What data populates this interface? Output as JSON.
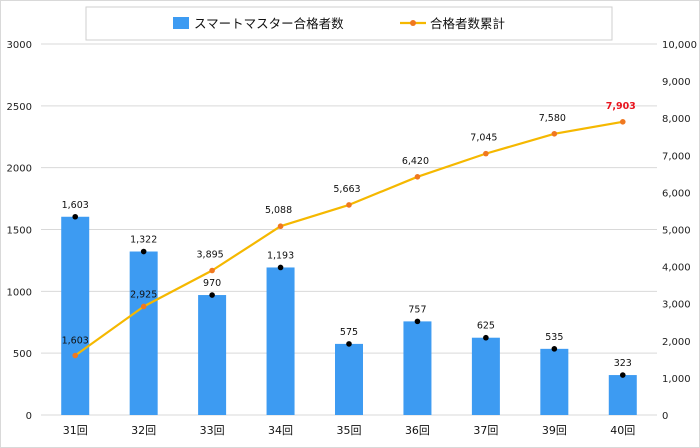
{
  "chart_data": {
    "type": "bar+line",
    "categories": [
      "31回",
      "32回",
      "33回",
      "34回",
      "35回",
      "36回",
      "37回",
      "39回",
      "40回"
    ],
    "series": [
      {
        "name": "スマートマスター合格者数",
        "type": "bar",
        "axis": "left",
        "values": [
          1603,
          1322,
          970,
          1193,
          575,
          757,
          625,
          535,
          323
        ],
        "labels": [
          "1,603",
          "1,322",
          "970",
          "1,193",
          "575",
          "757",
          "625",
          "535",
          "323"
        ],
        "color": "#3d9bf2"
      },
      {
        "name": "合格者数累計",
        "type": "line",
        "axis": "right",
        "values": [
          1603,
          2925,
          3895,
          5088,
          5663,
          6420,
          7045,
          7580,
          7903
        ],
        "labels": [
          "1,603",
          "2,925",
          "3,895",
          "5,088",
          "5,663",
          "6,420",
          "7,045",
          "7,580",
          "7,903"
        ],
        "color": "#f5b800",
        "marker_color": "#f07820",
        "highlight_last_label_color": "#e8141e"
      }
    ],
    "y_left": {
      "min": 0,
      "max": 3000,
      "ticks": [
        "0",
        "500",
        "1000",
        "1500",
        "2000",
        "2500",
        "3000"
      ]
    },
    "y_right": {
      "min": 0,
      "max": 10000,
      "ticks": [
        "0",
        "1,000",
        "2,000",
        "3,000",
        "4,000",
        "5,000",
        "6,000",
        "7,000",
        "8,000",
        "9,000",
        "10,000"
      ]
    },
    "grid": true,
    "legend": "top-center",
    "title": ""
  }
}
